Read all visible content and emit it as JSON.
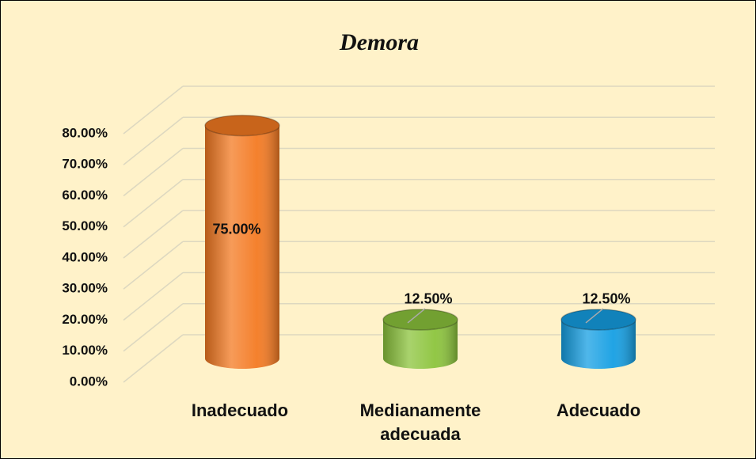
{
  "chart_data": {
    "type": "bar",
    "title": "Demora",
    "categories": [
      "Inadecuado",
      "Medianamente adecuada",
      "Adecuado"
    ],
    "values": [
      75,
      12.5,
      12.5
    ],
    "value_labels": [
      "75.00%",
      "12.50%",
      "12.50%"
    ],
    "colors": [
      "#f47a22",
      "#8cc43c",
      "#159fe3"
    ],
    "ylim": [
      0,
      80
    ],
    "yticks": [
      {
        "value": 0,
        "label": "0.00%"
      },
      {
        "value": 10,
        "label": "10.00%"
      },
      {
        "value": 20,
        "label": "20.00%"
      },
      {
        "value": 30,
        "label": "30.00%"
      },
      {
        "value": 40,
        "label": "40.00%"
      },
      {
        "value": 50,
        "label": "50.00%"
      },
      {
        "value": 60,
        "label": "60.00%"
      },
      {
        "value": 70,
        "label": "70.00%"
      },
      {
        "value": 80,
        "label": "80.00%"
      }
    ],
    "grid": true
  }
}
